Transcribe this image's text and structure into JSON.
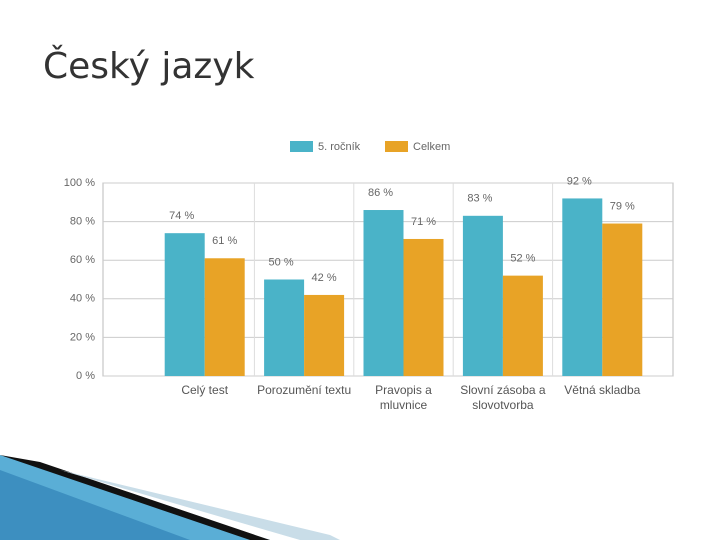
{
  "title": "Český jazyk",
  "chart_data": {
    "type": "bar",
    "categories": [
      "Celý test",
      "Porozumění textu",
      "Pravopis a mluvnice",
      "Slovní zásoba a slovotvorba",
      "Větná skladba"
    ],
    "series": [
      {
        "name": "5. ročník",
        "color": "#4ab3c8",
        "values": [
          74,
          50,
          86,
          83,
          92
        ],
        "value_labels": [
          "74 %",
          "50 %",
          "86 %",
          "83 %",
          "92 %"
        ]
      },
      {
        "name": "Celkem",
        "color": "#e8a326",
        "values": [
          61,
          42,
          71,
          52,
          79
        ],
        "value_labels": [
          "61 %",
          "42 %",
          "71 %",
          "52 %",
          "79 %"
        ]
      }
    ],
    "ylim": [
      0,
      100
    ],
    "yticks": [
      {
        "value": 0,
        "label": "0 %"
      },
      {
        "value": 20,
        "label": "20 %"
      },
      {
        "value": 40,
        "label": "40 %"
      },
      {
        "value": 60,
        "label": "60 %"
      },
      {
        "value": 80,
        "label": "80 %"
      },
      {
        "value": 100,
        "label": "100 %"
      }
    ],
    "grid": true
  }
}
